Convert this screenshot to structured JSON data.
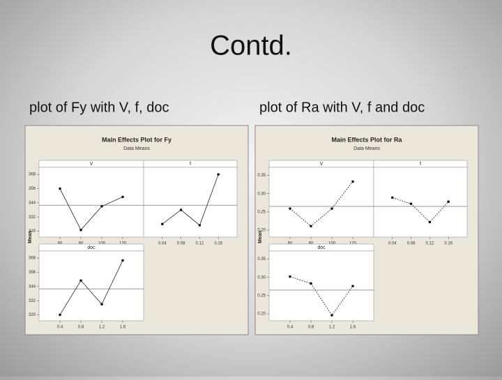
{
  "title": "Contd.",
  "captions": [
    "plot of Fy with V, f, doc",
    "plot of Ra with V, f and doc"
  ],
  "chart_data": [
    {
      "type": "line",
      "title": "Main Effects Plot for Fy",
      "subtitle": "Data Means",
      "y_label": "Mean",
      "ylim": [
        315,
        374
      ],
      "yticks": [
        320,
        332,
        344,
        356,
        368
      ],
      "mean": 342,
      "line_dash": false,
      "panels": [
        {
          "name": "V",
          "categories": [
            "60",
            "80",
            "100",
            "120"
          ],
          "values": [
            356,
            321,
            341,
            349
          ]
        },
        {
          "name": "f",
          "categories": [
            "0.04",
            "0.08",
            "0.12",
            "0.16"
          ],
          "values": [
            326,
            338,
            325,
            368
          ]
        },
        {
          "name": "doc",
          "categories": [
            "0.4",
            "0.8",
            "1.2",
            "1.6"
          ],
          "values": [
            320,
            349,
            329,
            366
          ]
        }
      ]
    },
    {
      "type": "line",
      "title": "Main Effects Plot for Ra",
      "subtitle": "Data Means",
      "y_label": "Mean",
      "ylim": [
        0.181,
        0.372
      ],
      "yticks": [
        {
          "value": 0.2,
          "label": "0.20"
        },
        0.25,
        {
          "value": 0.3,
          "label": "0.30"
        },
        0.35
      ],
      "mean": 0.265,
      "line_dash": true,
      "panels": [
        {
          "name": "V",
          "categories": [
            "60",
            "80",
            "100",
            "120"
          ],
          "values": [
            0.259,
            0.211,
            0.259,
            0.333
          ]
        },
        {
          "name": "f",
          "categories": [
            "0.04",
            "0.08",
            "0.12",
            "0.16"
          ],
          "values": [
            0.289,
            0.272,
            0.222,
            0.278
          ]
        },
        {
          "name": "doc",
          "categories": [
            "0.4",
            "0.8",
            "1.2",
            "1.6"
          ],
          "values": [
            0.302,
            0.283,
            0.196,
            0.276
          ]
        }
      ]
    }
  ]
}
